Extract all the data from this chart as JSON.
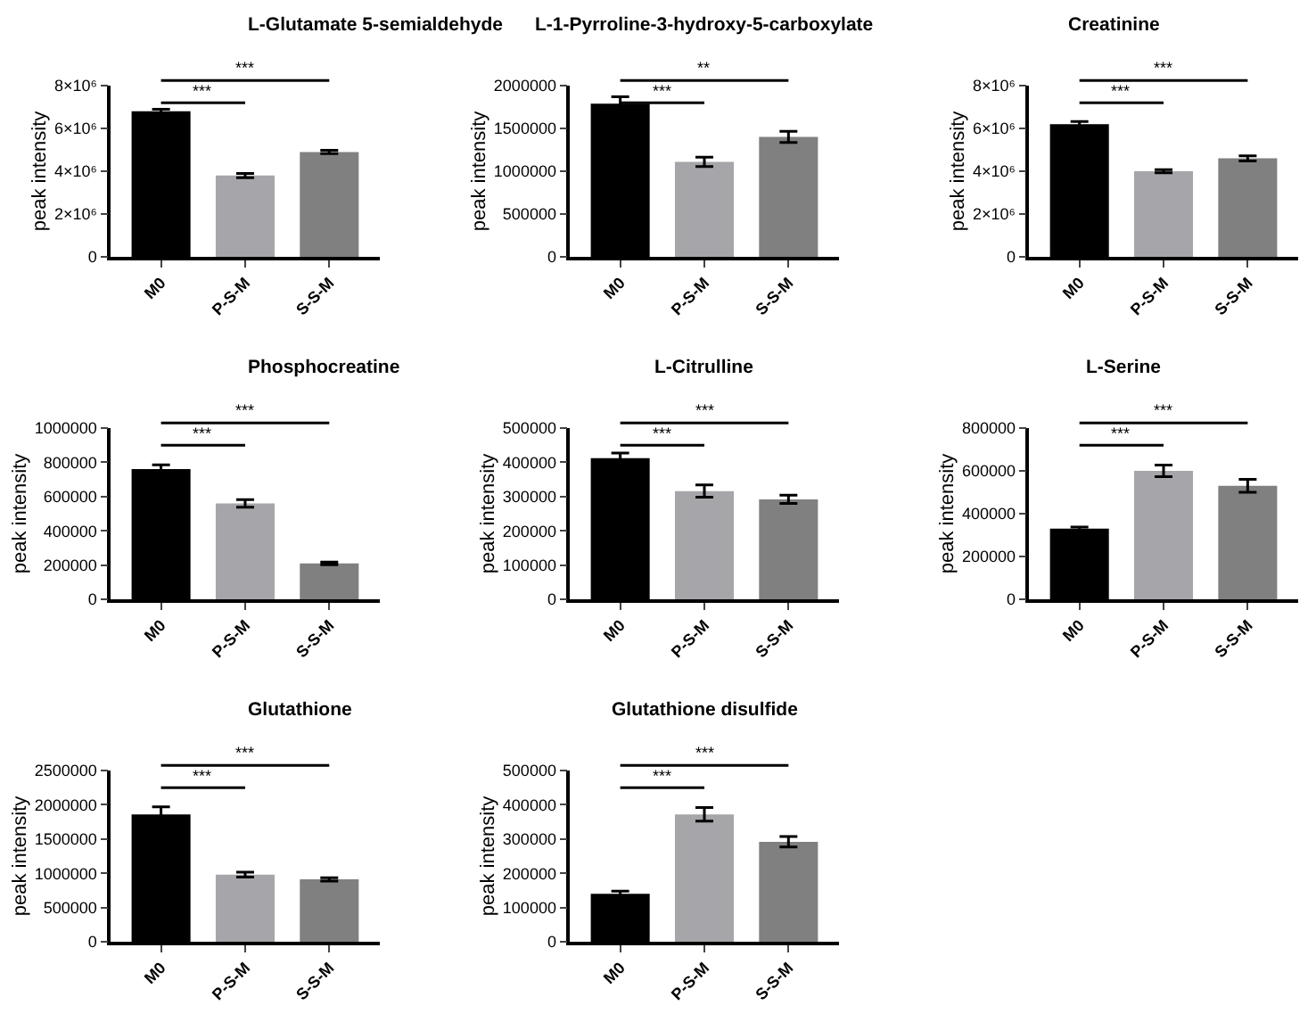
{
  "chart_data": [
    {
      "type": "bar",
      "title": "L-Glutamate 5-semialdehyde",
      "ylabel": "peak intensity",
      "categories": [
        "M0",
        "P-S-M",
        "S-S-M"
      ],
      "values": [
        6800000,
        3800000,
        4900000
      ],
      "errors": [
        100000,
        100000,
        80000
      ],
      "colors": [
        "#000000",
        "#a6a6aa",
        "#808080"
      ],
      "ylim": [
        0,
        8000000
      ],
      "yticks": [
        0,
        {
          "value": 2000000,
          "label": "2×10⁶"
        },
        {
          "value": 4000000,
          "label": "4×10⁶"
        },
        {
          "value": 6000000,
          "label": "6×10⁶"
        },
        {
          "value": 8000000,
          "label": "8×10⁶"
        }
      ],
      "annotations": [
        "***",
        "***"
      ]
    },
    {
      "type": "bar",
      "title": "L-1-Pyrroline-3-hydroxy-5-carboxylate",
      "ylabel": "peak intensity",
      "categories": [
        "M0",
        "P-S-M",
        "S-S-M"
      ],
      "values": [
        1790000,
        1110000,
        1400000
      ],
      "errors": [
        80000,
        55000,
        65000
      ],
      "colors": [
        "#000000",
        "#a6a6aa",
        "#808080"
      ],
      "ylim": [
        0,
        2000000
      ],
      "yticks": [
        0,
        500000,
        1000000,
        1500000,
        2000000
      ],
      "annotations": [
        "***",
        "**"
      ]
    },
    {
      "type": "bar",
      "title": "Creatinine",
      "ylabel": "peak intensity",
      "categories": [
        "M0",
        "P-S-M",
        "S-S-M"
      ],
      "values": [
        6200000,
        4000000,
        4600000
      ],
      "errors": [
        120000,
        70000,
        120000
      ],
      "colors": [
        "#000000",
        "#a6a6aa",
        "#808080"
      ],
      "ylim": [
        0,
        8000000
      ],
      "yticks": [
        0,
        {
          "value": 2000000,
          "label": "2×10⁶"
        },
        {
          "value": 4000000,
          "label": "4×10⁶"
        },
        {
          "value": 6000000,
          "label": "6×10⁶"
        },
        {
          "value": 8000000,
          "label": "8×10⁶"
        }
      ],
      "annotations": [
        "***",
        "***"
      ]
    },
    {
      "type": "bar",
      "title": "Phosphocreatine",
      "ylabel": "peak intensity",
      "categories": [
        "M0",
        "P-S-M",
        "S-S-M"
      ],
      "values": [
        760000,
        560000,
        210000
      ],
      "errors": [
        25000,
        22000,
        8000
      ],
      "colors": [
        "#000000",
        "#a6a6aa",
        "#808080"
      ],
      "ylim": [
        0,
        1000000
      ],
      "yticks": [
        0,
        200000,
        400000,
        600000,
        800000,
        1000000
      ],
      "annotations": [
        "***",
        "***"
      ]
    },
    {
      "type": "bar",
      "title": "L-Citrulline",
      "ylabel": "peak intensity",
      "categories": [
        "M0",
        "P-S-M",
        "S-S-M"
      ],
      "values": [
        412000,
        316000,
        292000
      ],
      "errors": [
        15000,
        18000,
        12000
      ],
      "colors": [
        "#000000",
        "#a6a6aa",
        "#808080"
      ],
      "ylim": [
        0,
        500000
      ],
      "yticks": [
        0,
        100000,
        200000,
        300000,
        400000,
        500000
      ],
      "annotations": [
        "***",
        "***"
      ]
    },
    {
      "type": "bar",
      "title": "L-Serine",
      "ylabel": "peak intensity",
      "categories": [
        "M0",
        "P-S-M",
        "S-S-M"
      ],
      "values": [
        330000,
        600000,
        530000
      ],
      "errors": [
        8000,
        27000,
        30000
      ],
      "colors": [
        "#000000",
        "#a6a6aa",
        "#808080"
      ],
      "ylim": [
        0,
        800000
      ],
      "yticks": [
        0,
        200000,
        400000,
        600000,
        800000
      ],
      "annotations": [
        "***",
        "***"
      ]
    },
    {
      "type": "bar",
      "title": "Glutathione",
      "ylabel": "peak intensity",
      "categories": [
        "M0",
        "P-S-M",
        "S-S-M"
      ],
      "values": [
        1860000,
        980000,
        910000
      ],
      "errors": [
        110000,
        35000,
        25000
      ],
      "colors": [
        "#000000",
        "#a6a6aa",
        "#808080"
      ],
      "ylim": [
        0,
        2500000
      ],
      "yticks": [
        0,
        500000,
        1000000,
        1500000,
        2000000,
        2500000
      ],
      "annotations": [
        "***",
        "***"
      ]
    },
    {
      "type": "bar",
      "title": "Glutathione disulfide",
      "ylabel": "peak intensity",
      "categories": [
        "M0",
        "P-S-M",
        "S-S-M"
      ],
      "values": [
        140000,
        372000,
        292000
      ],
      "errors": [
        8000,
        20000,
        15000
      ],
      "colors": [
        "#000000",
        "#a6a6aa",
        "#808080"
      ],
      "ylim": [
        0,
        500000
      ],
      "yticks": [
        0,
        100000,
        200000,
        300000,
        400000,
        500000
      ],
      "annotations": [
        "***",
        "***"
      ]
    }
  ]
}
